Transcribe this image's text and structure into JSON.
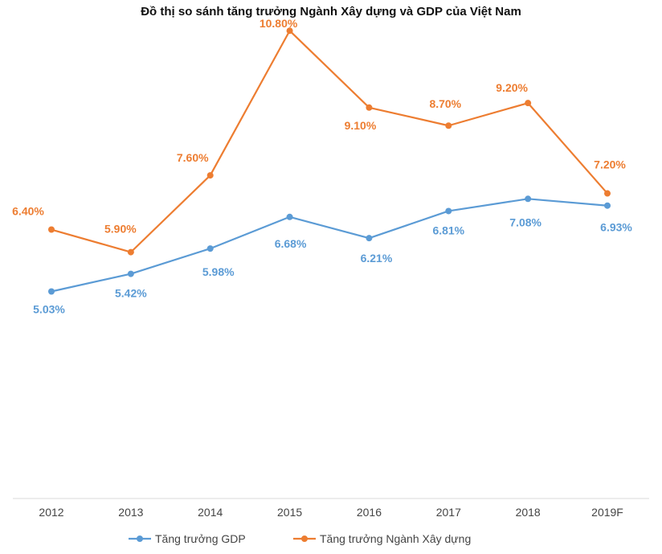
{
  "chart_data": {
    "type": "line",
    "title": "Đồ thị so sánh tăng trưởng Ngành Xây dựng và GDP của Việt Nam",
    "categories": [
      "2012",
      "2013",
      "2014",
      "2015",
      "2016",
      "2017",
      "2018",
      "2019F"
    ],
    "series": [
      {
        "name": "Tăng trưởng GDP",
        "color": "#5b9bd5",
        "values": [
          5.03,
          5.42,
          5.98,
          6.68,
          6.21,
          6.81,
          7.08,
          6.93
        ],
        "labels": [
          "5.03%",
          "5.42%",
          "5.98%",
          "6.68%",
          "6.21%",
          "6.81%",
          "7.08%",
          "6.93%"
        ]
      },
      {
        "name": "Tăng trưởng Ngành Xây dựng",
        "color": "#ed7d31",
        "values": [
          6.4,
          5.9,
          7.6,
          10.8,
          9.1,
          8.7,
          9.2,
          7.2
        ],
        "labels": [
          "6.40%",
          "5.90%",
          "7.60%",
          "10.80%",
          "9.10%",
          "8.70%",
          "9.20%",
          "7.20%"
        ]
      }
    ],
    "grid": false,
    "legend": "bottom"
  }
}
